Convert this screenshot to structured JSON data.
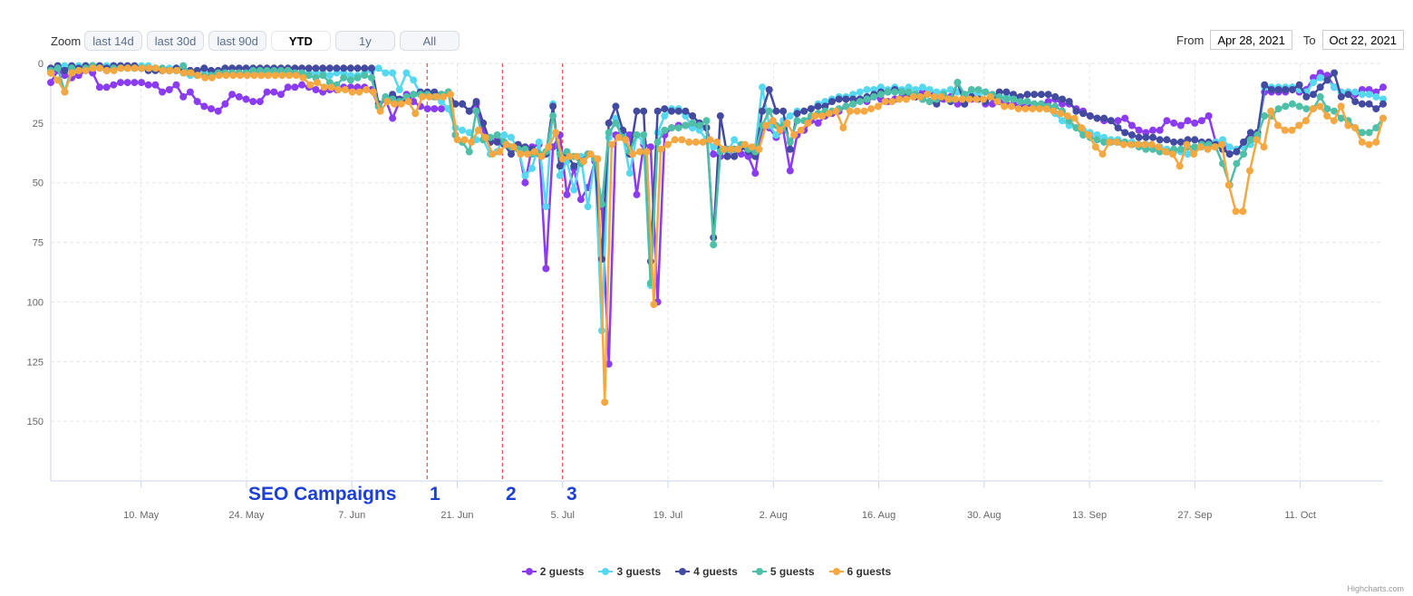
{
  "zoom": {
    "label": "Zoom",
    "buttons": [
      "last 14d",
      "last 30d",
      "last 90d",
      "YTD",
      "1y",
      "All"
    ],
    "active": "YTD"
  },
  "range": {
    "from_label": "From",
    "from_value": "Apr 28, 2021",
    "to_label": "To",
    "to_value": "Oct 22, 2021"
  },
  "annotations": {
    "title": "SEO Campaigns",
    "marks": [
      "1",
      "2",
      "3"
    ]
  },
  "credits": "Highcharts.com",
  "chart_data": {
    "type": "line",
    "title": "",
    "xlabel": "",
    "ylabel": "",
    "y_reversed": true,
    "ylim": [
      0,
      175
    ],
    "y_ticks": [
      0,
      25,
      50,
      75,
      100,
      125,
      150
    ],
    "x_start": "2021-04-28",
    "x_end": "2021-10-22",
    "x_ticks": [
      "10. May",
      "24. May",
      "7. Jun",
      "21. Jun",
      "5. Jul",
      "19. Jul",
      "2. Aug",
      "16. Aug",
      "30. Aug",
      "13. Sep",
      "27. Sep",
      "11. Oct"
    ],
    "campaign_lines": [
      "2021-06-17",
      "2021-06-27",
      "2021-07-05"
    ],
    "legend_position": "bottom-center",
    "series": [
      {
        "name": "2 guests",
        "color": "#8c3cf0",
        "values": [
          8,
          3,
          5,
          6,
          5,
          3,
          4,
          10,
          10,
          9,
          8,
          8,
          8,
          8,
          9,
          9,
          12,
          11,
          9,
          14,
          12,
          16,
          18,
          19,
          20,
          17,
          13,
          14,
          15,
          16,
          16,
          12,
          12,
          13,
          10,
          10,
          9,
          10,
          11,
          12,
          11,
          11,
          10,
          10,
          10,
          10,
          11,
          18,
          15,
          23,
          16,
          13,
          16,
          18,
          19,
          19,
          19,
          19,
          17,
          17,
          20,
          17,
          28,
          33,
          32,
          33,
          36,
          35,
          50,
          35,
          34,
          86,
          35,
          30,
          55,
          44,
          57,
          52,
          41,
          60,
          126,
          30,
          28,
          30,
          55,
          34,
          35,
          100,
          30,
          27,
          26,
          26,
          27,
          26,
          27,
          38,
          39,
          39,
          36,
          38,
          39,
          46,
          27,
          27,
          31,
          28,
          45,
          30,
          28,
          24,
          25,
          22,
          21,
          20,
          18,
          17,
          15,
          16,
          14,
          15,
          16,
          15,
          14,
          12,
          13,
          12,
          12,
          14,
          15,
          14,
          17,
          17,
          15,
          13,
          17,
          17,
          16,
          17,
          17,
          18,
          17,
          18,
          17,
          16,
          15,
          17,
          17,
          19,
          20,
          22,
          23,
          24,
          24,
          24,
          23,
          26,
          28,
          29,
          28,
          28,
          24,
          25,
          26,
          24,
          25,
          24,
          22,
          33,
          35,
          38,
          37,
          33,
          31,
          29,
          12,
          12,
          12,
          12,
          10,
          12,
          11,
          6,
          4,
          5,
          10,
          12,
          12,
          13,
          11,
          11,
          12,
          10
        ]
      },
      {
        "name": "3 guests",
        "color": "#56d8f0",
        "values": [
          4,
          1,
          1,
          2,
          1,
          1,
          2,
          1,
          1,
          1,
          1,
          2,
          2,
          1,
          1,
          2,
          3,
          2,
          2,
          4,
          5,
          3,
          3,
          4,
          4,
          4,
          4,
          4,
          4,
          4,
          4,
          4,
          4,
          4,
          4,
          4,
          4,
          4,
          4,
          4,
          5,
          4,
          4,
          5,
          5,
          4,
          3,
          2,
          4,
          4,
          11,
          4,
          7,
          13,
          12,
          14,
          16,
          19,
          27,
          28,
          29,
          32,
          32,
          38,
          37,
          30,
          31,
          36,
          47,
          44,
          33,
          60,
          17,
          47,
          41,
          53,
          39,
          60,
          40,
          112,
          31,
          23,
          30,
          46,
          30,
          33,
          93,
          29,
          22,
          19,
          19,
          22,
          27,
          28,
          32,
          35,
          36,
          37,
          32,
          35,
          37,
          35,
          10,
          26,
          30,
          24,
          22,
          20,
          20,
          19,
          17,
          16,
          15,
          14,
          14,
          13,
          12,
          11,
          11,
          10,
          11,
          10,
          11,
          10,
          11,
          10,
          11,
          12,
          12,
          11,
          12,
          13,
          12,
          13,
          12,
          14,
          14,
          14,
          14,
          16,
          16,
          17,
          18,
          19,
          21,
          24,
          26,
          27,
          28,
          29,
          30,
          31,
          32,
          32,
          33,
          33,
          34,
          34,
          35,
          35,
          36,
          37,
          37,
          38,
          36,
          35,
          35,
          33,
          32,
          35,
          36,
          35,
          34,
          31,
          10,
          10,
          10,
          10,
          10,
          11,
          12,
          8,
          6,
          7,
          10,
          12,
          12,
          12,
          13,
          13,
          14,
          15
        ]
      },
      {
        "name": "4 guests",
        "color": "#434ba1",
        "values": [
          2,
          1,
          3,
          1,
          2,
          1,
          1,
          1,
          2,
          1,
          1,
          1,
          1,
          2,
          3,
          3,
          3,
          3,
          2,
          2,
          3,
          3,
          2,
          3,
          3,
          2,
          2,
          2,
          2,
          2,
          2,
          2,
          2,
          2,
          2,
          2,
          2,
          2,
          2,
          2,
          2,
          2,
          2,
          2,
          2,
          2,
          2,
          17,
          15,
          13,
          15,
          15,
          13,
          12,
          12,
          12,
          13,
          12,
          17,
          17,
          20,
          16,
          25,
          33,
          33,
          34,
          38,
          34,
          35,
          36,
          38,
          38,
          18,
          43,
          38,
          43,
          41,
          38,
          40,
          82,
          25,
          18,
          28,
          38,
          20,
          20,
          83,
          20,
          19,
          20,
          20,
          20,
          22,
          25,
          27,
          73,
          22,
          39,
          39,
          35,
          37,
          39,
          20,
          11,
          20,
          20,
          36,
          21,
          20,
          19,
          18,
          18,
          16,
          15,
          15,
          15,
          15,
          14,
          13,
          12,
          12,
          11,
          12,
          13,
          14,
          15,
          16,
          17,
          14,
          16,
          8,
          17,
          14,
          15,
          16,
          14,
          12,
          12,
          13,
          14,
          13,
          13,
          13,
          13,
          14,
          15,
          16,
          20,
          21,
          22,
          23,
          23,
          24,
          27,
          29,
          30,
          31,
          31,
          31,
          32,
          32,
          33,
          33,
          32,
          32,
          33,
          33,
          34,
          36,
          38,
          37,
          33,
          29,
          29,
          9,
          11,
          11,
          11,
          11,
          9,
          14,
          13,
          10,
          7,
          4,
          14,
          13,
          16,
          17,
          17,
          19,
          17
        ]
      },
      {
        "name": "5 guests",
        "color": "#4fbfa7",
        "values": [
          3,
          2,
          12,
          2,
          3,
          2,
          1,
          2,
          3,
          2,
          2,
          2,
          2,
          2,
          2,
          2,
          2,
          3,
          3,
          1,
          4,
          5,
          5,
          5,
          4,
          4,
          4,
          4,
          4,
          3,
          3,
          3,
          3,
          3,
          3,
          4,
          4,
          5,
          6,
          5,
          8,
          9,
          6,
          7,
          6,
          5,
          6,
          18,
          14,
          15,
          16,
          14,
          13,
          13,
          13,
          14,
          13,
          12,
          30,
          33,
          37,
          20,
          32,
          31,
          30,
          33,
          35,
          36,
          36,
          38,
          38,
          37,
          22,
          38,
          37,
          39,
          42,
          38,
          40,
          59,
          29,
          25,
          31,
          37,
          30,
          30,
          92,
          33,
          28,
          27,
          27,
          26,
          25,
          26,
          24,
          76,
          37,
          36,
          36,
          34,
          36,
          37,
          26,
          20,
          26,
          26,
          33,
          24,
          24,
          22,
          21,
          20,
          20,
          19,
          18,
          17,
          16,
          15,
          14,
          13,
          12,
          12,
          12,
          12,
          13,
          15,
          16,
          15,
          13,
          15,
          8,
          13,
          11,
          11,
          12,
          13,
          14,
          15,
          15,
          16,
          16,
          17,
          17,
          18,
          18,
          20,
          24,
          27,
          30,
          31,
          32,
          33,
          33,
          33,
          33,
          34,
          35,
          36,
          36,
          37,
          37,
          36,
          36,
          35,
          35,
          34,
          34,
          35,
          42,
          51,
          42,
          38,
          32,
          30,
          22,
          22,
          19,
          18,
          17,
          18,
          19,
          19,
          14,
          19,
          20,
          23,
          24,
          27,
          29,
          29,
          27,
          23
        ]
      },
      {
        "name": "6 guests",
        "color": "#f5a742",
        "values": [
          4,
          7,
          12,
          4,
          3,
          3,
          2,
          2,
          3,
          3,
          2,
          2,
          2,
          2,
          2,
          2,
          3,
          3,
          3,
          4,
          4,
          5,
          6,
          6,
          5,
          5,
          5,
          5,
          5,
          5,
          5,
          5,
          5,
          5,
          5,
          5,
          6,
          9,
          8,
          10,
          10,
          11,
          11,
          12,
          12,
          11,
          12,
          20,
          16,
          17,
          17,
          16,
          21,
          14,
          14,
          14,
          14,
          13,
          32,
          32,
          33,
          28,
          31,
          38,
          37,
          34,
          35,
          38,
          38,
          37,
          39,
          35,
          29,
          40,
          39,
          39,
          41,
          38,
          40,
          142,
          34,
          31,
          32,
          38,
          37,
          37,
          101,
          36,
          34,
          32,
          32,
          33,
          33,
          33,
          32,
          33,
          36,
          36,
          36,
          34,
          35,
          36,
          26,
          24,
          28,
          25,
          30,
          28,
          25,
          22,
          22,
          21,
          20,
          27,
          20,
          20,
          20,
          19,
          18,
          16,
          16,
          15,
          15,
          14,
          14,
          13,
          14,
          14,
          15,
          15,
          15,
          15,
          15,
          15,
          14,
          16,
          18,
          18,
          19,
          19,
          19,
          19,
          19,
          20,
          21,
          22,
          23,
          27,
          30,
          35,
          38,
          33,
          33,
          34,
          34,
          34,
          34,
          34,
          35,
          37,
          38,
          43,
          34,
          38,
          35,
          36,
          35,
          34,
          51,
          62,
          62,
          45,
          32,
          35,
          20,
          26,
          28,
          28,
          26,
          24,
          19,
          18,
          22,
          24,
          18,
          26,
          27,
          33,
          34,
          33,
          23
        ]
      }
    ]
  }
}
